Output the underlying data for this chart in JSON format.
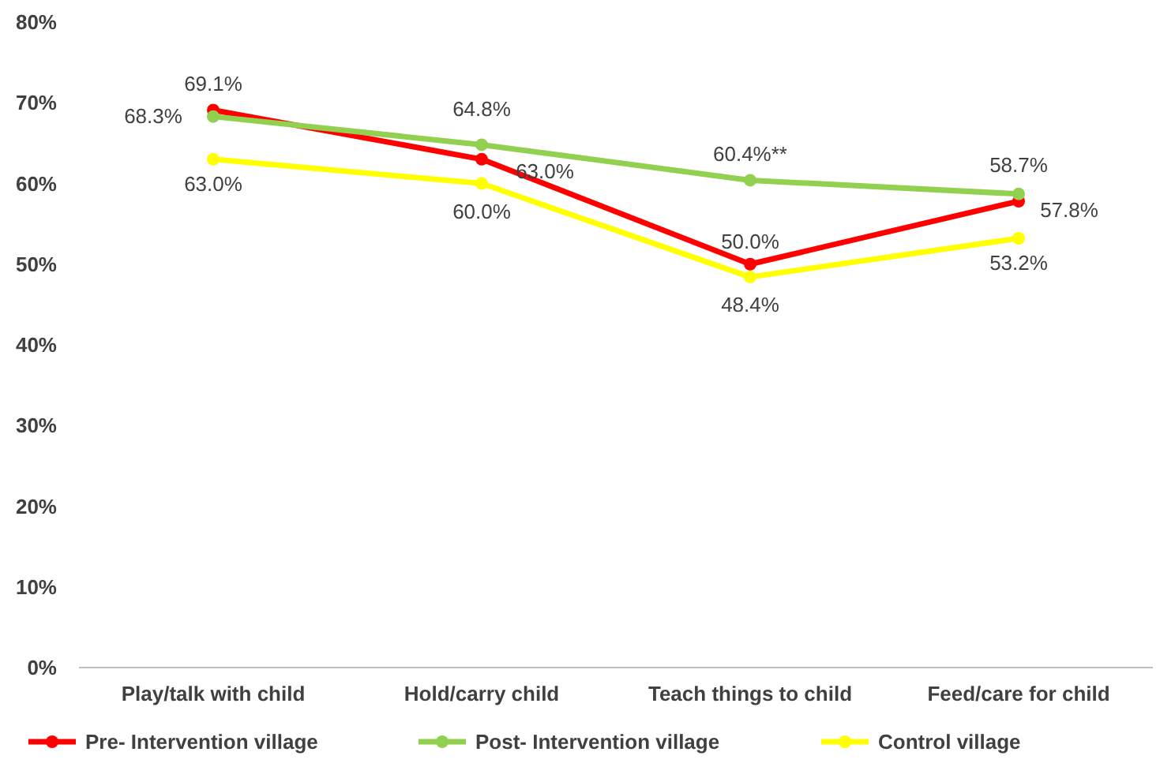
{
  "chart_data": {
    "type": "line",
    "categories": [
      "Play/talk with child",
      "Hold/carry child",
      "Teach things to child",
      "Feed/care for child"
    ],
    "ylim": [
      0,
      80
    ],
    "yticks": [
      {
        "value": 0,
        "label": "0%"
      },
      {
        "value": 10,
        "label": "10%"
      },
      {
        "value": 20,
        "label": "20%"
      },
      {
        "value": 30,
        "label": "30%"
      },
      {
        "value": 40,
        "label": "40%"
      },
      {
        "value": 50,
        "label": "50%"
      },
      {
        "value": 60,
        "label": "60%"
      },
      {
        "value": 70,
        "label": "70%"
      },
      {
        "value": 80,
        "label": "80%"
      }
    ],
    "grid": false,
    "legend": "bottom",
    "marker": "circle",
    "line_style": "solid",
    "series": [
      {
        "name": "Pre- Intervention village",
        "color": "#ff0000",
        "values": [
          69.1,
          63.0,
          50.0,
          57.8
        ],
        "value_labels": [
          "69.1%",
          "63.0%",
          "50.0%",
          "57.8%"
        ]
      },
      {
        "name": "Post- Intervention village",
        "color": "#92d050",
        "values": [
          68.3,
          64.8,
          60.4,
          58.7
        ],
        "value_labels": [
          "68.3%",
          "64.8%",
          "60.4%**",
          "58.7%"
        ]
      },
      {
        "name": "Control village",
        "color": "#ffff00",
        "values": [
          63.0,
          60.0,
          48.4,
          53.2
        ],
        "value_labels": [
          "63.0%",
          "60.0%",
          "48.4%",
          "53.2%"
        ]
      }
    ]
  }
}
